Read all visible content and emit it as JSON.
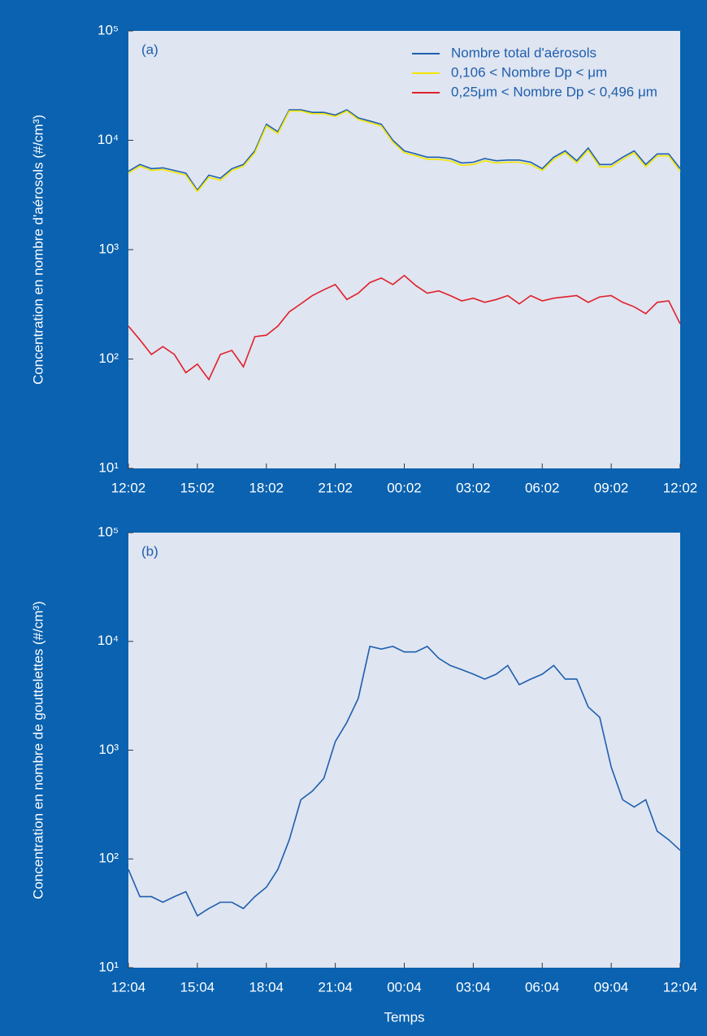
{
  "chart_data": [
    {
      "type": "line",
      "annotation": "(a)",
      "ylabel": "Concentration en nombre d'aérosols (#/cm³)",
      "log_y": true,
      "legend": "upper right",
      "xlim": [
        0,
        1440
      ],
      "ylim": [
        10,
        100000
      ],
      "xticks": [
        {
          "value": 0,
          "label": "12:02"
        },
        {
          "value": 180,
          "label": "15:02"
        },
        {
          "value": 360,
          "label": "18:02"
        },
        {
          "value": 540,
          "label": "21:02"
        },
        {
          "value": 720,
          "label": "00:02"
        },
        {
          "value": 900,
          "label": "03:02"
        },
        {
          "value": 1080,
          "label": "06:02"
        },
        {
          "value": 1260,
          "label": "09:02"
        },
        {
          "value": 1440,
          "label": "12:02"
        }
      ],
      "yticks": [
        {
          "value": 10,
          "label": "10¹"
        },
        {
          "value": 100,
          "label": "10²"
        },
        {
          "value": 1000,
          "label": "10³"
        },
        {
          "value": 10000,
          "label": "10⁴"
        },
        {
          "value": 100000,
          "label": "10⁵"
        }
      ],
      "x": [
        0,
        30,
        60,
        90,
        120,
        150,
        180,
        210,
        240,
        270,
        300,
        330,
        360,
        390,
        420,
        450,
        480,
        510,
        540,
        570,
        600,
        630,
        660,
        690,
        720,
        750,
        780,
        810,
        840,
        870,
        900,
        930,
        960,
        990,
        1020,
        1050,
        1080,
        1110,
        1140,
        1170,
        1200,
        1230,
        1260,
        1290,
        1320,
        1350,
        1380,
        1410,
        1440
      ],
      "series": [
        {
          "name": "Nombre total d'aérosols",
          "color": "#1f5fae",
          "values": [
            5200,
            6000,
            5500,
            5600,
            5300,
            5000,
            3500,
            4800,
            4500,
            5500,
            6000,
            8000,
            14000,
            12000,
            19000,
            19000,
            18000,
            18000,
            17000,
            19000,
            16000,
            15000,
            14000,
            10000,
            8000,
            7500,
            7000,
            7000,
            6800,
            6200,
            6300,
            6800,
            6500,
            6600,
            6600,
            6300,
            5500,
            7000,
            8000,
            6500,
            8500,
            6000,
            6000,
            7000,
            8000,
            6000,
            7500,
            7500,
            5500
          ]
        },
        {
          "name": "0,106 < Nombre Dp < μm",
          "color": "#f2e600",
          "values": [
            5000,
            5800,
            5300,
            5400,
            5100,
            4800,
            3400,
            4600,
            4300,
            5300,
            5800,
            7700,
            13500,
            11500,
            18500,
            18500,
            17500,
            17500,
            16500,
            18500,
            15500,
            14500,
            13500,
            9600,
            7700,
            7200,
            6700,
            6700,
            6500,
            5900,
            6000,
            6500,
            6200,
            6300,
            6300,
            6000,
            5300,
            6700,
            7700,
            6200,
            8100,
            5700,
            5700,
            6700,
            7700,
            5700,
            7200,
            7200,
            5200
          ]
        },
        {
          "name": "0,25μm < Nombre Dp < 0,496 μm",
          "color": "#e0202a",
          "values": [
            200,
            150,
            110,
            130,
            110,
            75,
            90,
            65,
            110,
            120,
            85,
            160,
            165,
            200,
            270,
            320,
            380,
            430,
            480,
            350,
            400,
            500,
            550,
            480,
            580,
            470,
            400,
            420,
            380,
            340,
            360,
            330,
            350,
            380,
            320,
            380,
            340,
            360,
            370,
            380,
            330,
            370,
            380,
            330,
            300,
            260,
            330,
            340,
            210
          ]
        }
      ]
    },
    {
      "type": "line",
      "annotation": "(b)",
      "ylabel": "Concentration en nombre de gouttelettes (#/cm³)",
      "xlabel": "Temps",
      "log_y": true,
      "xlim": [
        0,
        1440
      ],
      "ylim": [
        10,
        100000
      ],
      "xticks": [
        {
          "value": 0,
          "label": "12:04"
        },
        {
          "value": 180,
          "label": "15:04"
        },
        {
          "value": 360,
          "label": "18:04"
        },
        {
          "value": 540,
          "label": "21:04"
        },
        {
          "value": 720,
          "label": "00:04"
        },
        {
          "value": 900,
          "label": "03:04"
        },
        {
          "value": 1080,
          "label": "06:04"
        },
        {
          "value": 1260,
          "label": "09:04"
        },
        {
          "value": 1440,
          "label": "12:04"
        }
      ],
      "yticks": [
        {
          "value": 10,
          "label": "10¹"
        },
        {
          "value": 100,
          "label": "10²"
        },
        {
          "value": 1000,
          "label": "10³"
        },
        {
          "value": 10000,
          "label": "10⁴"
        },
        {
          "value": 100000,
          "label": "10⁵"
        }
      ],
      "x": [
        0,
        30,
        60,
        90,
        120,
        150,
        180,
        210,
        240,
        270,
        300,
        330,
        360,
        390,
        420,
        450,
        480,
        510,
        540,
        570,
        600,
        630,
        660,
        690,
        720,
        750,
        780,
        810,
        840,
        870,
        900,
        930,
        960,
        990,
        1020,
        1050,
        1080,
        1110,
        1140,
        1170,
        1200,
        1230,
        1260,
        1290,
        1320,
        1350,
        1380,
        1410,
        1440
      ],
      "series": [
        {
          "color": "#1f5fae",
          "values": [
            80,
            45,
            45,
            40,
            45,
            50,
            30,
            35,
            40,
            40,
            35,
            45,
            55,
            80,
            150,
            350,
            420,
            550,
            1200,
            1800,
            3000,
            9000,
            8500,
            9000,
            8000,
            8000,
            9000,
            7000,
            6000,
            5500,
            5000,
            4500,
            5000,
            6000,
            4000,
            4500,
            5000,
            6000,
            4500,
            4500,
            2500,
            2000,
            700,
            350,
            300,
            350,
            180,
            150,
            120
          ]
        }
      ]
    }
  ]
}
